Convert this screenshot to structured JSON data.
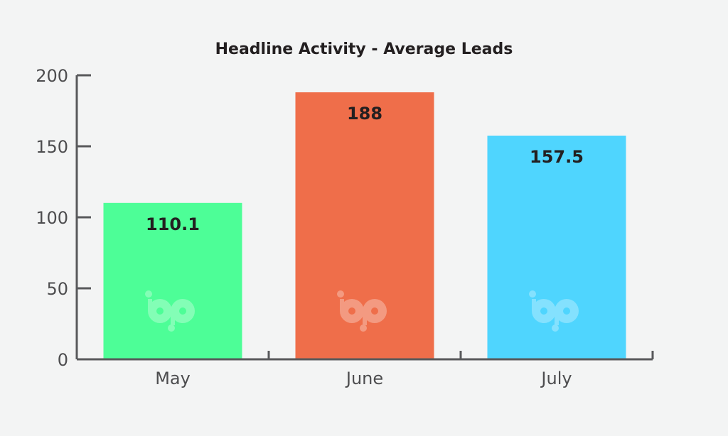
{
  "chart_data": {
    "type": "bar",
    "title": "Headline Activity - Average Leads",
    "xlabel": "",
    "ylabel": "",
    "categories": [
      "May",
      "June",
      "July"
    ],
    "values": [
      110.1,
      188,
      157.5
    ],
    "data_labels": [
      "110.1",
      "188",
      "157.5"
    ],
    "ylim": [
      0,
      200
    ],
    "yticks": [
      0,
      50,
      100,
      150,
      200
    ],
    "ytick_labels": [
      "0",
      "50",
      "100",
      "150",
      "200"
    ],
    "bar_colors": [
      "#4dfe97",
      "#ef6e4a",
      "#4fd5fe"
    ],
    "grid": false,
    "legend": "none",
    "watermark_icon": "bp-logo-icon"
  },
  "colors": {
    "background": "#f3f4f4",
    "axis": "#58595b",
    "text": "#231f20",
    "tick_text": "#4d4d4f"
  }
}
